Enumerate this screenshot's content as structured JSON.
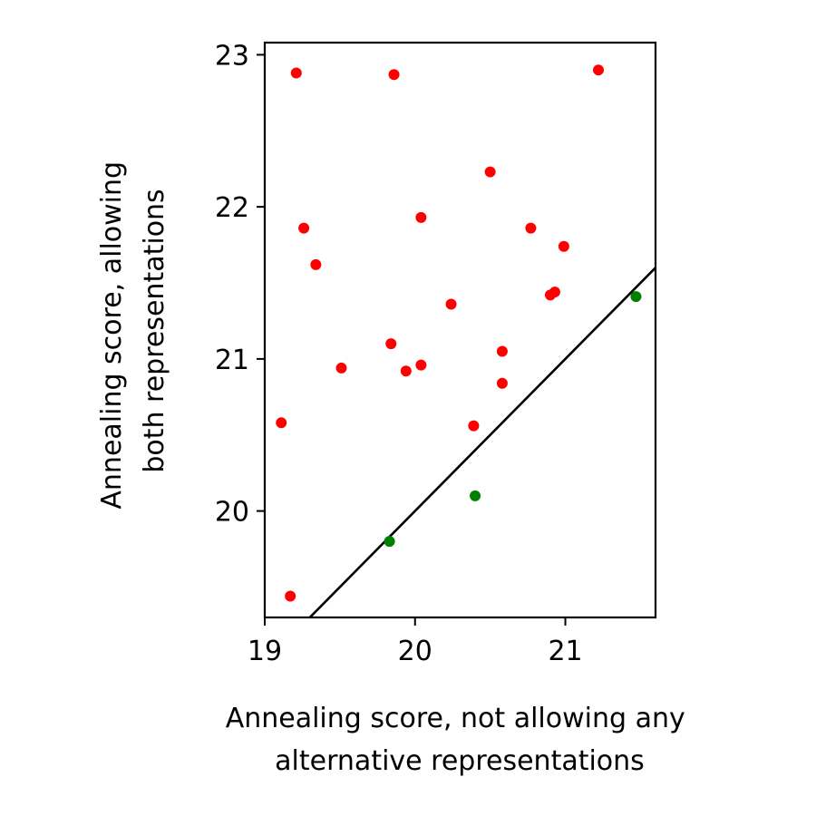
{
  "chart_data": {
    "type": "scatter",
    "title": "",
    "xlabel": [
      "Annealing score, not allowing any",
      "alternative representations"
    ],
    "ylabel": [
      "Annealing score, allowing",
      "both representations"
    ],
    "xlim": [
      19.0,
      21.6
    ],
    "ylim": [
      19.3,
      23.08
    ],
    "xticks": [
      19,
      20,
      21
    ],
    "yticks": [
      20,
      21,
      22,
      23
    ],
    "grid": false,
    "reference_line": {
      "slope": 1,
      "intercept": 0,
      "color": "#000000"
    },
    "series": [
      {
        "color": "#ff0000",
        "points": [
          [
            19.21,
            22.88
          ],
          [
            19.86,
            22.87
          ],
          [
            21.22,
            22.9
          ],
          [
            20.5,
            22.23
          ],
          [
            19.26,
            21.86
          ],
          [
            20.04,
            21.93
          ],
          [
            20.77,
            21.86
          ],
          [
            20.99,
            21.74
          ],
          [
            19.34,
            21.62
          ],
          [
            20.24,
            21.36
          ],
          [
            20.9,
            21.42
          ],
          [
            20.93,
            21.44
          ],
          [
            19.84,
            21.1
          ],
          [
            20.58,
            21.05
          ],
          [
            19.51,
            20.94
          ],
          [
            19.94,
            20.92
          ],
          [
            20.04,
            20.96
          ],
          [
            20.58,
            20.84
          ],
          [
            19.11,
            20.58
          ],
          [
            20.39,
            20.56
          ],
          [
            19.17,
            19.44
          ]
        ]
      },
      {
        "color": "#008000",
        "points": [
          [
            21.47,
            21.41
          ],
          [
            20.4,
            20.1
          ],
          [
            19.83,
            19.8
          ]
        ]
      }
    ]
  }
}
